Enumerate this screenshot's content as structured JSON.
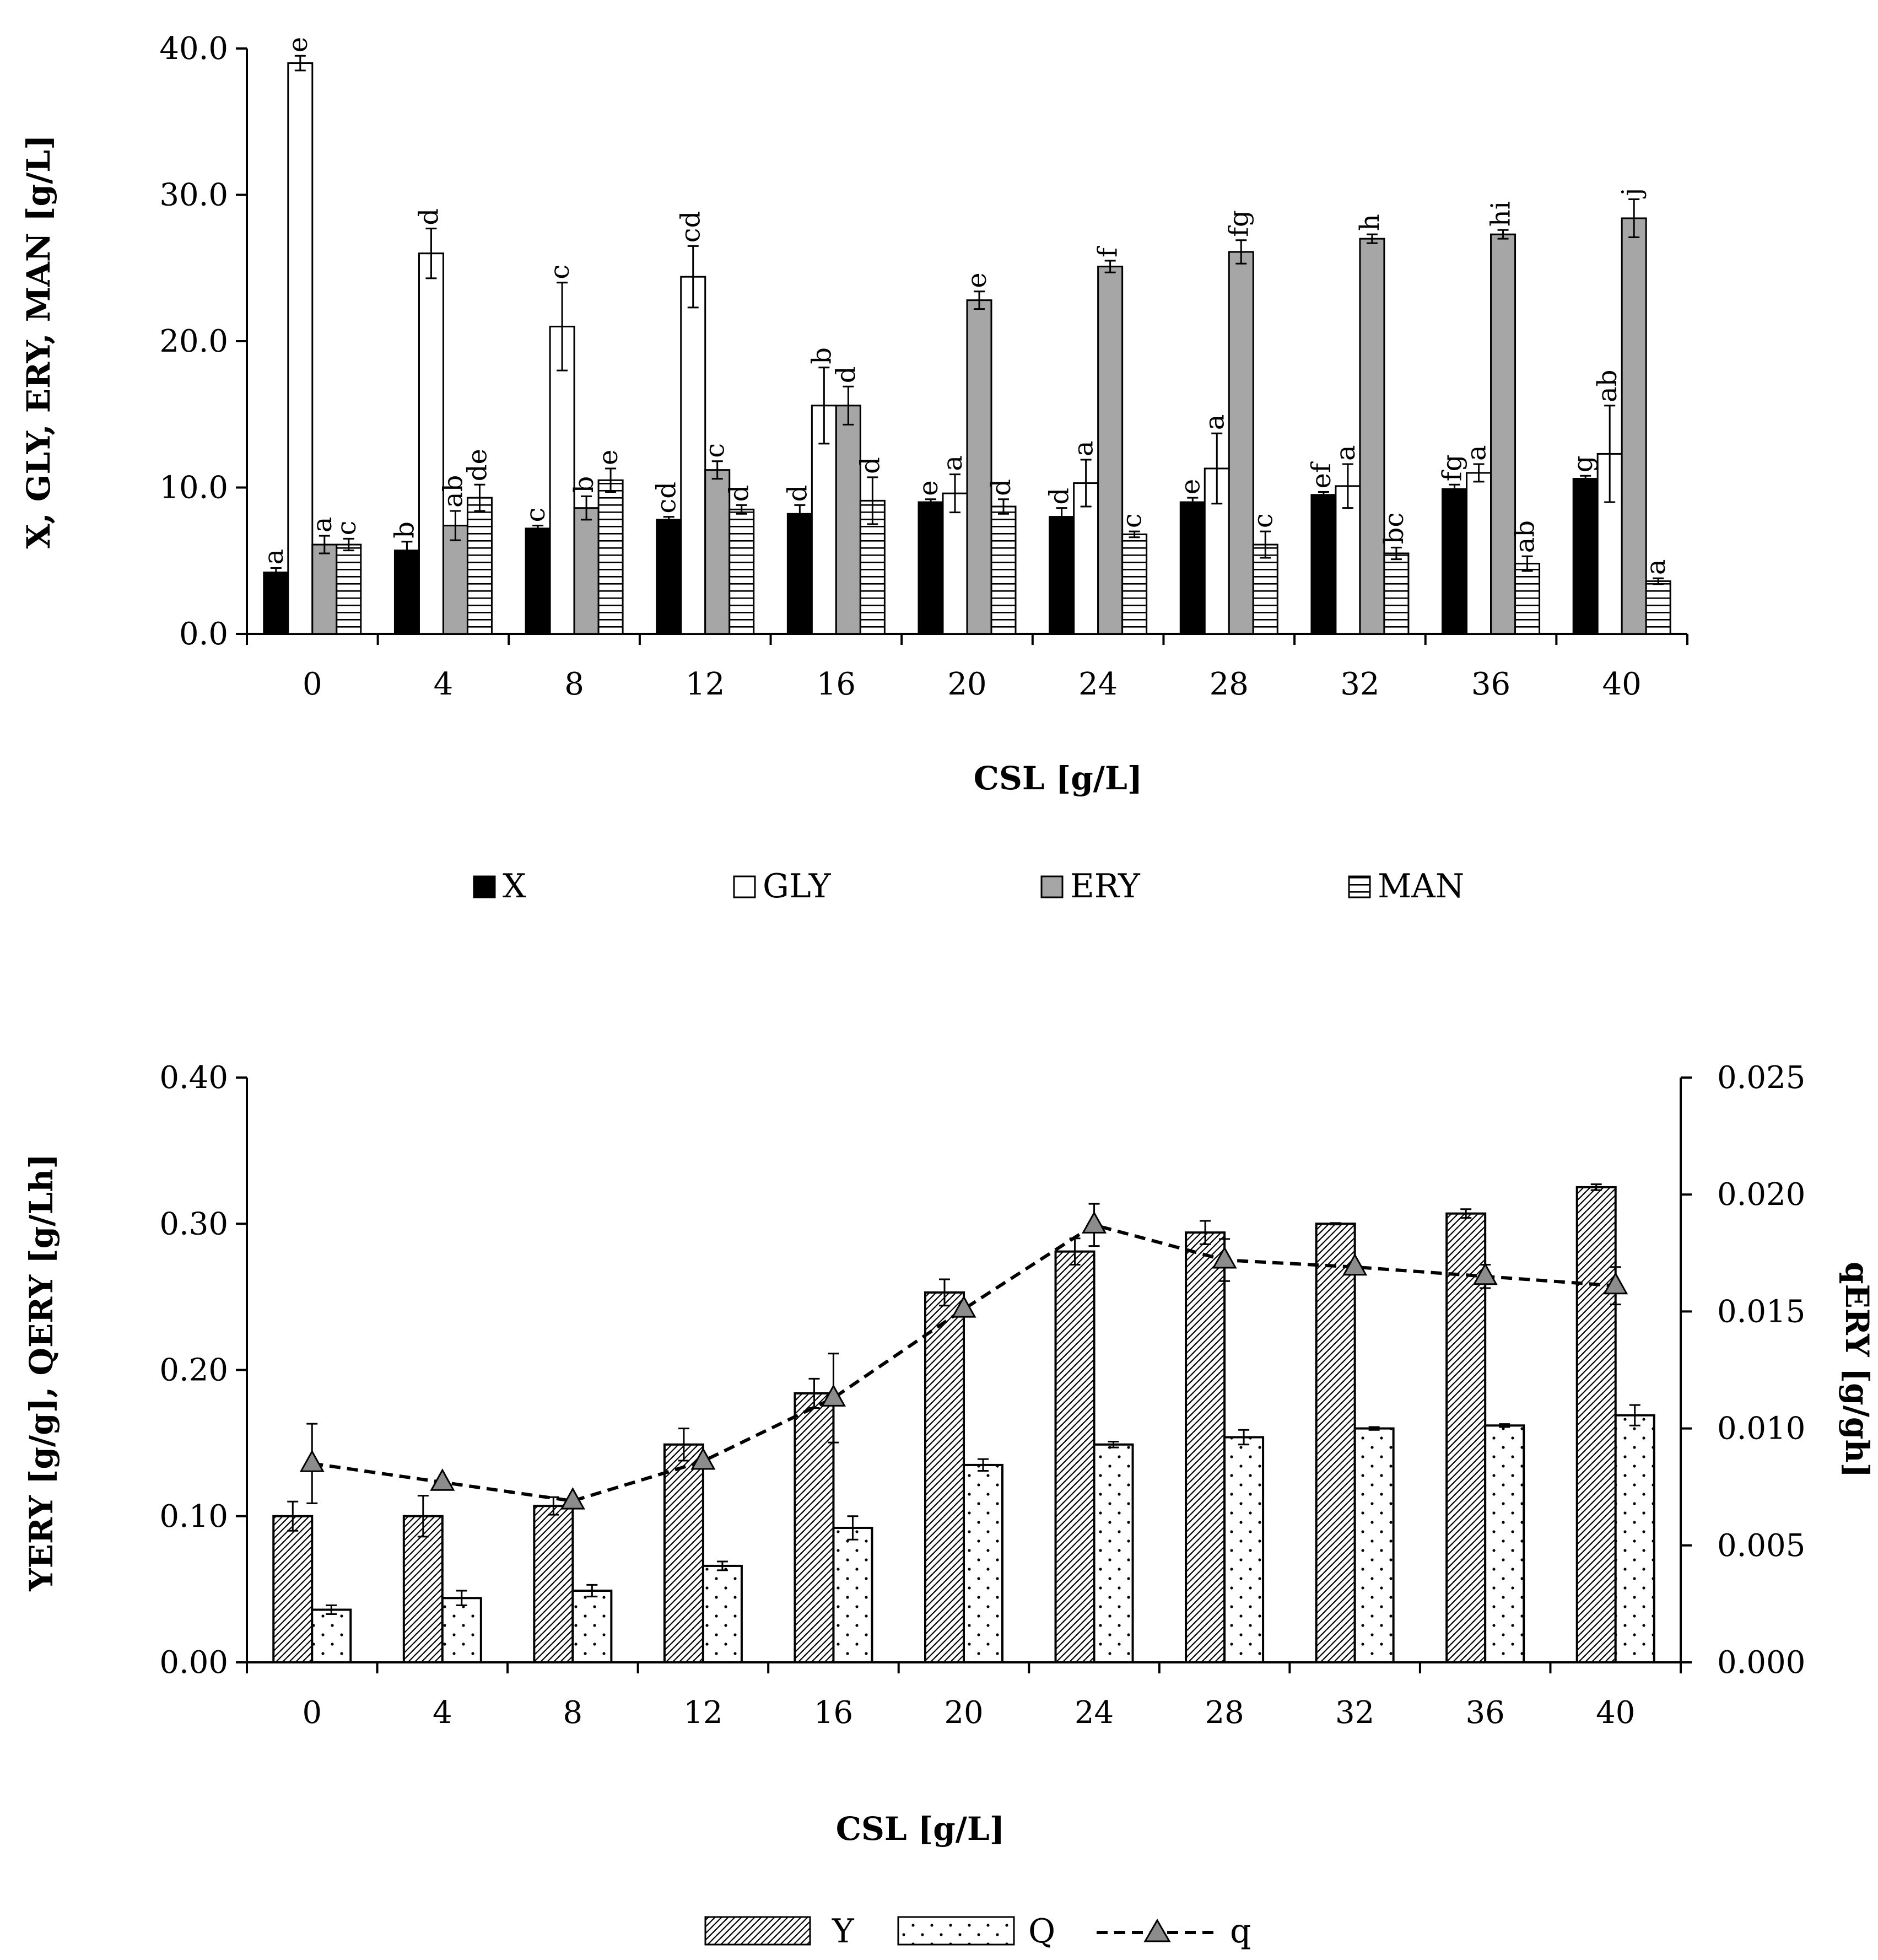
{
  "chart_data": [
    {
      "type": "bar",
      "categories": [
        "0",
        "4",
        "8",
        "12",
        "16",
        "20",
        "24",
        "28",
        "32",
        "36",
        "40"
      ],
      "xlabel": "CSL [g/L]",
      "ylabel": "X, GLY, ERY, MAN [g/L]",
      "ylim": [
        0,
        40
      ],
      "yticks": [
        "0.0",
        "10.0",
        "20.0",
        "30.0",
        "40.0"
      ],
      "legend_position": "bottom",
      "series": [
        {
          "name": "X",
          "key": "X",
          "values": [
            4.2,
            5.7,
            7.2,
            7.8,
            8.2,
            9.0,
            8.0,
            9.0,
            9.5,
            9.9,
            10.6
          ],
          "errors": [
            0.3,
            0.6,
            0.2,
            0.2,
            0.6,
            0.2,
            0.6,
            0.3,
            0.2,
            0.3,
            0.2
          ],
          "letters": [
            "a",
            "b",
            "c",
            "cd",
            "d",
            "e",
            "d",
            "e",
            "ef",
            "fg",
            "g"
          ]
        },
        {
          "name": "GLY",
          "key": "GLY",
          "values": [
            39.0,
            26.0,
            21.0,
            24.4,
            15.6,
            9.6,
            10.3,
            11.3,
            10.1,
            11.0,
            12.3
          ],
          "errors": [
            0.5,
            1.7,
            3.0,
            2.1,
            2.6,
            1.3,
            1.6,
            2.4,
            1.5,
            0.6,
            3.3
          ],
          "letters": [
            "e",
            "d",
            "c",
            "cd",
            "b",
            "a",
            "a",
            "a",
            "a",
            "a",
            "ab"
          ]
        },
        {
          "name": "ERY",
          "key": "ERY",
          "values": [
            6.1,
            7.4,
            8.6,
            11.2,
            15.6,
            22.8,
            25.1,
            26.1,
            27.0,
            27.3,
            28.4
          ],
          "errors": [
            0.6,
            1.0,
            0.8,
            0.6,
            1.3,
            0.6,
            0.4,
            0.8,
            0.3,
            0.3,
            1.3
          ],
          "letters": [
            "a",
            "ab",
            "b",
            "c",
            "d",
            "e",
            "f",
            "fg",
            "h",
            "hi",
            "j"
          ]
        },
        {
          "name": "MAN",
          "key": "MAN",
          "values": [
            6.1,
            9.3,
            10.5,
            8.5,
            9.1,
            8.7,
            6.8,
            6.1,
            5.5,
            4.8,
            3.6
          ],
          "errors": [
            0.4,
            0.9,
            0.8,
            0.3,
            1.6,
            0.5,
            0.2,
            0.9,
            0.4,
            0.5,
            0.2
          ],
          "letters": [
            "c",
            "de",
            "e",
            "d",
            "d",
            "d",
            "c",
            "c",
            "bc",
            "ab",
            "a"
          ]
        }
      ]
    },
    {
      "type": "bar+line",
      "categories": [
        "0",
        "4",
        "8",
        "12",
        "16",
        "20",
        "24",
        "28",
        "32",
        "36",
        "40"
      ],
      "xlabel": "CSL [g/L]",
      "ylabel": "YERY [g/g], QERY [g/Lh]",
      "y2label": "qERY [g/gh]",
      "ylim": [
        0,
        0.4
      ],
      "y2lim": [
        0,
        0.025
      ],
      "yticks": [
        "0.00",
        "0.10",
        "0.20",
        "0.30",
        "0.40"
      ],
      "y2ticks": [
        "0.000",
        "0.005",
        "0.010",
        "0.015",
        "0.020",
        "0.025"
      ],
      "legend_position": "bottom",
      "series": [
        {
          "name": "Y",
          "key": "Y",
          "axis": "left",
          "values": [
            0.1,
            0.1,
            0.107,
            0.149,
            0.184,
            0.253,
            0.281,
            0.294,
            0.3,
            0.307,
            0.325
          ],
          "errors": [
            0.01,
            0.014,
            0.006,
            0.011,
            0.01,
            0.009,
            0.009,
            0.008,
            0.0005,
            0.003,
            0.002
          ]
        },
        {
          "name": "Q",
          "key": "Q",
          "axis": "left",
          "values": [
            0.036,
            0.044,
            0.049,
            0.066,
            0.092,
            0.135,
            0.149,
            0.154,
            0.16,
            0.162,
            0.169
          ],
          "errors": [
            0.003,
            0.005,
            0.004,
            0.003,
            0.008,
            0.004,
            0.002,
            0.005,
            0.001,
            0.001,
            0.007
          ]
        },
        {
          "name": "q",
          "key": "q",
          "axis": "right",
          "style": "dashed line with triangle markers",
          "values": [
            0.0085,
            0.0077,
            0.0069,
            0.0086,
            0.0113,
            0.0151,
            0.0187,
            0.0172,
            0.0169,
            0.0165,
            0.0161
          ],
          "errors": [
            0.0017,
            0.0,
            0.0,
            0.0,
            0.0019,
            0.0,
            0.0009,
            0.0009,
            0.0,
            0.0005,
            0.0008
          ]
        }
      ]
    }
  ]
}
